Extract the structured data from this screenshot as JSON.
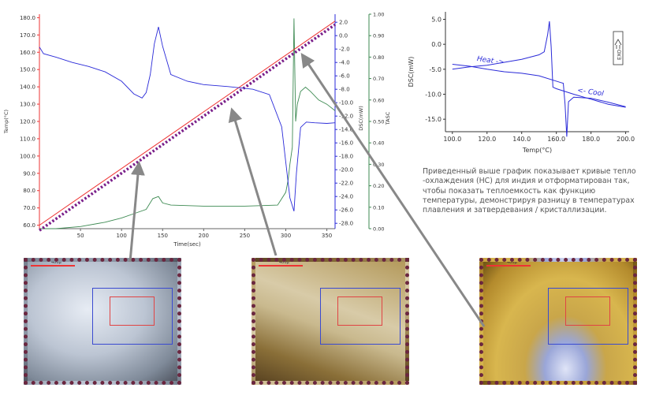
{
  "chart_data": [
    {
      "type": "line",
      "xlabel": "Time(sec)",
      "ylabel_left": "Temp(°C)",
      "ylabel_right1": "DSC(mW)",
      "ylabel_right2": "TASC",
      "xlim": [
        0,
        360
      ],
      "ylim_left": [
        58,
        182
      ],
      "ylim_right1": [
        -28.8,
        3.2
      ],
      "ylim_right2": [
        0,
        1
      ],
      "x_ticks": [
        "50",
        "100",
        "150",
        "200",
        "250",
        "300",
        "350"
      ],
      "y_ticks_left": [
        "60.0",
        "70.0",
        "80.0",
        "90.0",
        "100.0",
        "110.0",
        "120.0",
        "130.0",
        "140.0",
        "150.0",
        "160.0",
        "170.0",
        "180.0"
      ],
      "y_ticks_right1": [
        "2.0",
        "0.0",
        "-2.0",
        "-4.0",
        "-6.0",
        "-8.0",
        "-10.0",
        "-12.0",
        "-14.0",
        "-16.0",
        "-18.0",
        "-20.0",
        "-22.0",
        "-24.0",
        "-26.0",
        "-28.0"
      ],
      "y_ticks_right2": [
        "0.00",
        "0.10",
        "0.20",
        "0.30",
        "0.40",
        "0.50",
        "0.60",
        "0.70",
        "0.80",
        "0.90",
        "1.00"
      ],
      "grid": false,
      "series": [
        {
          "kind": "temperature_program",
          "axis": "left",
          "color": "#e33",
          "x": [
            0,
            360
          ],
          "y": [
            60,
            178
          ]
        },
        {
          "kind": "sample_temperature",
          "axis": "left",
          "color": "#7a1f8a",
          "style": "dotted",
          "x": [
            0,
            360
          ],
          "y": [
            57,
            176
          ]
        },
        {
          "kind": "dsc",
          "axis": "right1",
          "color": "#2a2ad8",
          "x": [
            0,
            5,
            20,
            40,
            60,
            80,
            100,
            115,
            125,
            130,
            135,
            140,
            145,
            150,
            160,
            180,
            200,
            230,
            260,
            280,
            295,
            305,
            310,
            313,
            318,
            325,
            335,
            350,
            360
          ],
          "y": [
            -1.7,
            -2.7,
            -3.2,
            -4.0,
            -4.6,
            -5.4,
            -6.8,
            -8.7,
            -9.3,
            -8.5,
            -5.8,
            -1.2,
            1.3,
            -1.6,
            -5.8,
            -6.8,
            -7.3,
            -7.6,
            -8.0,
            -8.8,
            -13.6,
            -24.2,
            -26.2,
            -20.5,
            -13.7,
            -12.9,
            -13.0,
            -13.1,
            -13.0
          ]
        },
        {
          "kind": "tasc",
          "axis": "right2",
          "color": "#3d8a52",
          "x": [
            0,
            20,
            50,
            80,
            100,
            115,
            130,
            138,
            145,
            150,
            160,
            200,
            250,
            290,
            300,
            303,
            305,
            308,
            310,
            312,
            314,
            318,
            324,
            330,
            340,
            350,
            360
          ],
          "y": [
            0.0,
            0.0,
            0.01,
            0.03,
            0.05,
            0.07,
            0.09,
            0.14,
            0.15,
            0.12,
            0.11,
            0.105,
            0.105,
            0.11,
            0.17,
            0.23,
            0.3,
            0.38,
            0.98,
            0.5,
            0.58,
            0.64,
            0.66,
            0.64,
            0.6,
            0.58,
            0.55
          ]
        }
      ]
    },
    {
      "type": "line",
      "xlabel": "Temp(°C)",
      "ylabel": "DSC(mW)",
      "xlim": [
        96,
        202
      ],
      "ylim": [
        -17.5,
        6.5
      ],
      "x_ticks": [
        "100.0",
        "120.0",
        "140.0",
        "160.0",
        "180.0",
        "200.0"
      ],
      "y_ticks": [
        "5.0",
        "0.0",
        "-5.0",
        "-10.0",
        "-15.0"
      ],
      "grid": false,
      "annotations": [
        "Heat ->",
        "<- Cool",
        "EXO"
      ],
      "series": [
        {
          "name": "Heat",
          "color": "#2a2ad8",
          "x": [
            100,
            110,
            120,
            130,
            140,
            150,
            153,
            155,
            156,
            157,
            158,
            160,
            170,
            180,
            190,
            200
          ],
          "y": [
            -5.0,
            -4.5,
            -4.2,
            -3.6,
            -3.0,
            -2.1,
            -1.5,
            2.0,
            4.6,
            -0.5,
            -8.6,
            -8.9,
            -10.0,
            -11.0,
            -12.0,
            -12.6
          ]
        },
        {
          "name": "Cool",
          "color": "#2a2ad8",
          "x": [
            200,
            190,
            180,
            170,
            167,
            166,
            165,
            164,
            162,
            150,
            140,
            130,
            120,
            110,
            100
          ],
          "y": [
            -12.5,
            -11.6,
            -10.8,
            -10.6,
            -11.5,
            -18.5,
            -12.0,
            -7.8,
            -7.6,
            -6.3,
            -5.8,
            -5.5,
            -5.0,
            -4.4,
            -4.0
          ]
        }
      ]
    }
  ],
  "description": "Приведенный выше график показывает кривые тепло -охлаждения (НС) для индия и отформатирован так, чтобы показать теплоемкость как функцию температуры, демонстрируя разницу в температурах плавления и затвердевания / кристаллизации.",
  "micrographs": [
    {
      "scale_label": "400μ",
      "style": "white crystalline indium, solid"
    },
    {
      "scale_label": "400μ",
      "style": "melting, mixed brown and white"
    },
    {
      "scale_label": "400μ",
      "style": "liquid, golden yellow"
    }
  ],
  "colors": {
    "temp_program": "#e33",
    "sample_temp": "#7a1f8a",
    "dsc": "#2a2ad8",
    "tasc": "#3d8a52",
    "frame": "#6b2740",
    "arrow": "#888888"
  }
}
